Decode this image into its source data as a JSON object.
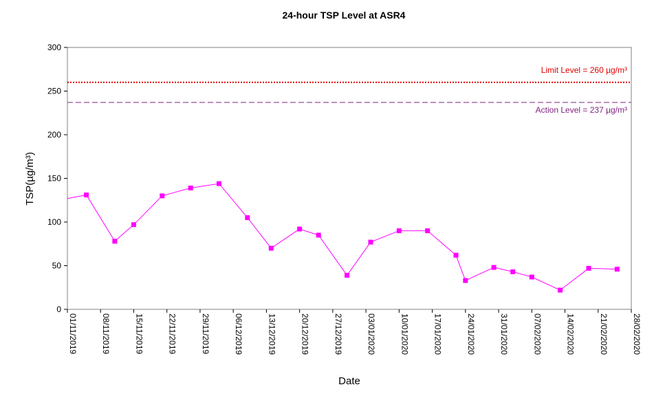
{
  "chart_data": {
    "type": "line",
    "title": "24-hour TSP Level at ASR4",
    "xlabel": "Date",
    "ylabel": "TSP(µg/m³)",
    "ylim": [
      0,
      300
    ],
    "yticks": [
      0,
      50,
      100,
      150,
      200,
      250,
      300
    ],
    "xlim": [
      "2019-11-01",
      "2020-02-28"
    ],
    "xtick_labels": [
      "01/11/2019",
      "08/11/2019",
      "15/11/2019",
      "22/11/2019",
      "29/11/2019",
      "06/12/2019",
      "13/12/2019",
      "20/12/2019",
      "27/12/2019",
      "03/01/2020",
      "10/01/2020",
      "17/01/2020",
      "24/01/2020",
      "31/01/2020",
      "07/02/2020",
      "14/02/2020",
      "21/02/2020",
      "28/02/2020"
    ],
    "xtick_dates": [
      "2019-11-01",
      "2019-11-08",
      "2019-11-15",
      "2019-11-22",
      "2019-11-29",
      "2019-12-06",
      "2019-12-13",
      "2019-12-20",
      "2019-12-27",
      "2020-01-03",
      "2020-01-10",
      "2020-01-17",
      "2020-01-24",
      "2020-01-31",
      "2020-02-07",
      "2020-02-14",
      "2020-02-21",
      "2020-02-28"
    ],
    "grid": false,
    "series": [
      {
        "name": "",
        "color": "#ff00ff",
        "marker": "square",
        "points": [
          {
            "x": "2019-11-01",
            "y": 127,
            "marker": false
          },
          {
            "x": "2019-11-05",
            "y": 131
          },
          {
            "x": "2019-11-11",
            "y": 78
          },
          {
            "x": "2019-11-15",
            "y": 97
          },
          {
            "x": "2019-11-21",
            "y": 130
          },
          {
            "x": "2019-11-27",
            "y": 139
          },
          {
            "x": "2019-12-03",
            "y": 144
          },
          {
            "x": "2019-12-09",
            "y": 105
          },
          {
            "x": "2019-12-14",
            "y": 70
          },
          {
            "x": "2019-12-20",
            "y": 92
          },
          {
            "x": "2019-12-24",
            "y": 85
          },
          {
            "x": "2019-12-30",
            "y": 39
          },
          {
            "x": "2020-01-04",
            "y": 77
          },
          {
            "x": "2020-01-10",
            "y": 90
          },
          {
            "x": "2020-01-16",
            "y": 90
          },
          {
            "x": "2020-01-22",
            "y": 62
          },
          {
            "x": "2020-01-24",
            "y": 33
          },
          {
            "x": "2020-01-30",
            "y": 48
          },
          {
            "x": "2020-02-03",
            "y": 43
          },
          {
            "x": "2020-02-07",
            "y": 37
          },
          {
            "x": "2020-02-13",
            "y": 22
          },
          {
            "x": "2020-02-19",
            "y": 47
          },
          {
            "x": "2020-02-25",
            "y": 46
          }
        ]
      }
    ],
    "reference_lines": [
      {
        "label": "Limit Level  = 260 µg/m³",
        "value": 260,
        "color": "#e00000",
        "style": "dotted",
        "label_position": "above"
      },
      {
        "label": "Action Level  = 237 µg/m³",
        "value": 237,
        "color": "#7f1f7f",
        "style": "dashed",
        "label_position": "below"
      }
    ]
  }
}
